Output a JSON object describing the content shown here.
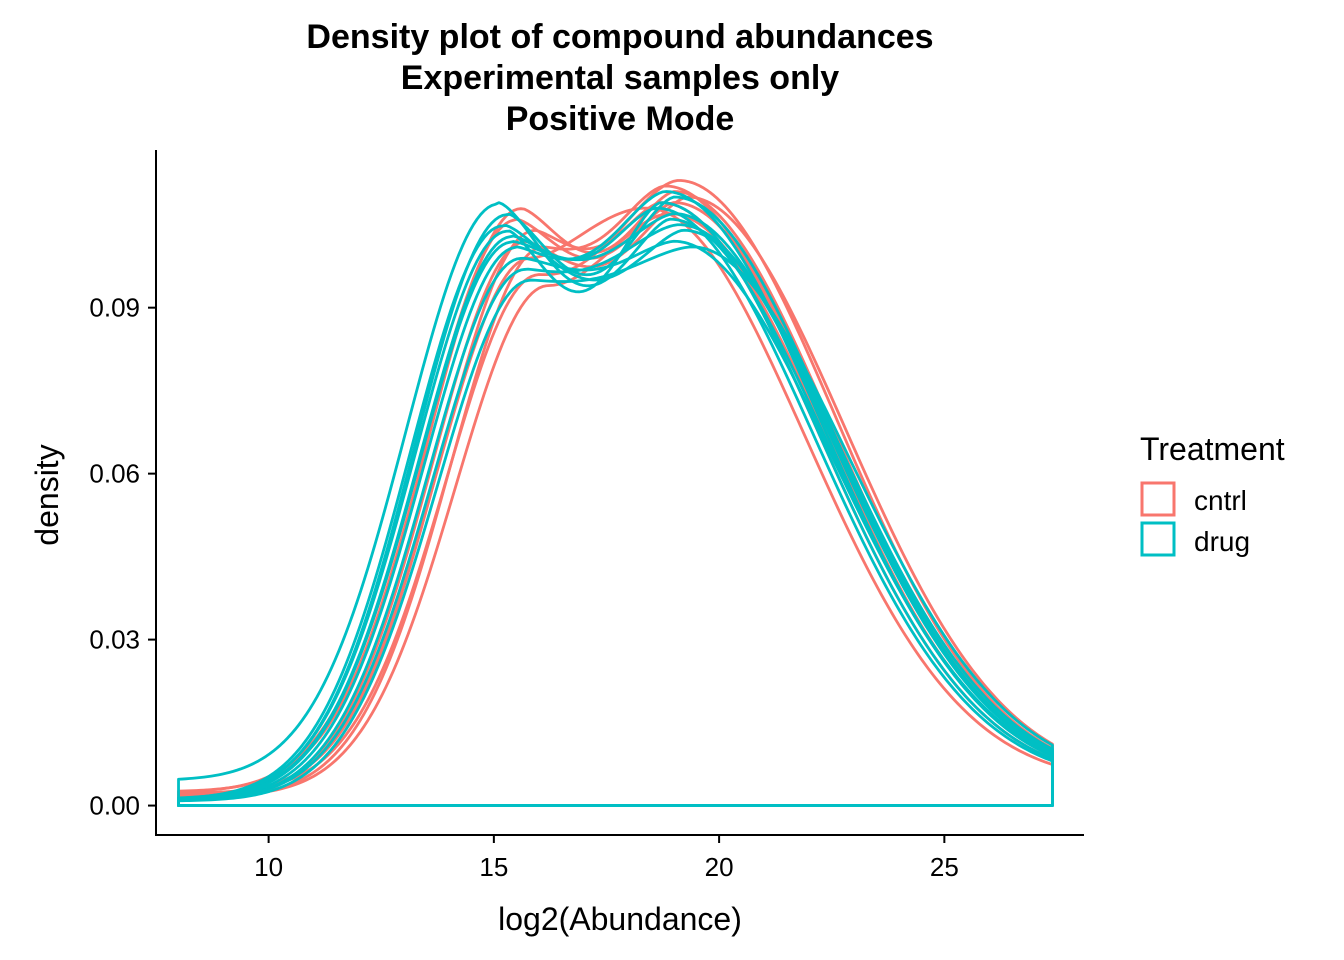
{
  "chart_data": {
    "type": "line",
    "subtype": "density",
    "title_lines": [
      "Density plot of compound abundances",
      "Experimental samples only",
      "Positive Mode"
    ],
    "xlabel": "log2(Abundance)",
    "ylabel": "density",
    "xlim": [
      7.5,
      28.1
    ],
    "ylim": [
      -0.0055,
      0.1185
    ],
    "x_ticks": [
      10,
      15,
      20,
      25
    ],
    "y_ticks": [
      0.0,
      0.03,
      0.06,
      0.09
    ],
    "x_tick_labels": [
      "10",
      "15",
      "20",
      "25"
    ],
    "y_tick_labels": [
      "0.00",
      "0.03",
      "0.06",
      "0.09"
    ],
    "x_range_of_curves": [
      8.0,
      27.4
    ],
    "grid": false,
    "legend": {
      "title": "Treatment",
      "position": "right",
      "entries": [
        {
          "label": "cntrl",
          "color": "#F8766D"
        },
        {
          "label": "drug",
          "color": "#00BFC4"
        }
      ]
    },
    "series": [
      {
        "group": "cntrl",
        "color": "#F8766D",
        "peak1_x": 15.6,
        "peak1_y": 0.108,
        "valley_y": 0.1,
        "peak2_x": 19.0,
        "peak2_y": 0.111,
        "left_end_y": 0.0025
      },
      {
        "group": "cntrl",
        "color": "#F8766D",
        "peak1_x": 15.9,
        "peak1_y": 0.104,
        "valley_y": 0.101,
        "peak2_x": 18.7,
        "peak2_y": 0.109,
        "left_end_y": 0.002
      },
      {
        "group": "cntrl",
        "color": "#F8766D",
        "peak1_x": 16.1,
        "peak1_y": 0.101,
        "valley_y": 0.103,
        "peak2_x": 18.8,
        "peak2_y": 0.112,
        "left_end_y": 0.0015
      },
      {
        "group": "cntrl",
        "color": "#F8766D",
        "peak1_x": 15.8,
        "peak1_y": 0.099,
        "valley_y": 0.104,
        "peak2_x": 18.4,
        "peak2_y": 0.108,
        "left_end_y": 0.0018
      },
      {
        "group": "cntrl",
        "color": "#F8766D",
        "peak1_x": 16.0,
        "peak1_y": 0.096,
        "valley_y": 0.102,
        "peak2_x": 19.1,
        "peak2_y": 0.113,
        "left_end_y": 0.0022
      },
      {
        "group": "cntrl",
        "color": "#F8766D",
        "peak1_x": 15.7,
        "peak1_y": 0.102,
        "valley_y": 0.098,
        "peak2_x": 19.3,
        "peak2_y": 0.11,
        "left_end_y": 0.0012
      },
      {
        "group": "cntrl",
        "color": "#F8766D",
        "peak1_x": 16.2,
        "peak1_y": 0.094,
        "valley_y": 0.1,
        "peak2_x": 18.9,
        "peak2_y": 0.107,
        "left_end_y": 0.0016
      },
      {
        "group": "cntrl",
        "color": "#F8766D",
        "peak1_x": 15.5,
        "peak1_y": 0.106,
        "valley_y": 0.099,
        "peak2_x": 19.0,
        "peak2_y": 0.109,
        "left_end_y": 0.0024
      },
      {
        "group": "drug",
        "color": "#00BFC4",
        "peak1_x": 15.1,
        "peak1_y": 0.109,
        "valley_y": 0.094,
        "peak2_x": 18.9,
        "peak2_y": 0.106,
        "left_end_y": 0.0045
      },
      {
        "group": "drug",
        "color": "#00BFC4",
        "peak1_x": 15.3,
        "peak1_y": 0.107,
        "valley_y": 0.096,
        "peak2_x": 19.0,
        "peak2_y": 0.11,
        "left_end_y": 0.001
      },
      {
        "group": "drug",
        "color": "#00BFC4",
        "peak1_x": 15.4,
        "peak1_y": 0.103,
        "valley_y": 0.099,
        "peak2_x": 18.6,
        "peak2_y": 0.108,
        "left_end_y": 0.0012
      },
      {
        "group": "drug",
        "color": "#00BFC4",
        "peak1_x": 15.6,
        "peak1_y": 0.099,
        "valley_y": 0.097,
        "peak2_x": 19.0,
        "peak2_y": 0.102,
        "left_end_y": 0.0008
      },
      {
        "group": "drug",
        "color": "#00BFC4",
        "peak1_x": 15.2,
        "peak1_y": 0.105,
        "valley_y": 0.095,
        "peak2_x": 19.2,
        "peak2_y": 0.104,
        "left_end_y": 0.0011
      },
      {
        "group": "drug",
        "color": "#00BFC4",
        "peak1_x": 15.5,
        "peak1_y": 0.101,
        "valley_y": 0.1,
        "peak2_x": 18.8,
        "peak2_y": 0.111,
        "left_end_y": 0.0009
      },
      {
        "group": "drug",
        "color": "#00BFC4",
        "peak1_x": 15.7,
        "peak1_y": 0.097,
        "valley_y": 0.098,
        "peak2_x": 19.1,
        "peak2_y": 0.105,
        "left_end_y": 0.001
      },
      {
        "group": "drug",
        "color": "#00BFC4",
        "peak1_x": 15.3,
        "peak1_y": 0.104,
        "valley_y": 0.093,
        "peak2_x": 18.7,
        "peak2_y": 0.109,
        "left_end_y": 0.0012
      },
      {
        "group": "drug",
        "color": "#00BFC4",
        "peak1_x": 15.8,
        "peak1_y": 0.095,
        "valley_y": 0.096,
        "peak2_x": 19.4,
        "peak2_y": 0.101,
        "left_end_y": 0.0008
      },
      {
        "group": "drug",
        "color": "#00BFC4",
        "peak1_x": 15.4,
        "peak1_y": 0.102,
        "valley_y": 0.099,
        "peak2_x": 19.0,
        "peak2_y": 0.107,
        "left_end_y": 0.001
      }
    ]
  }
}
